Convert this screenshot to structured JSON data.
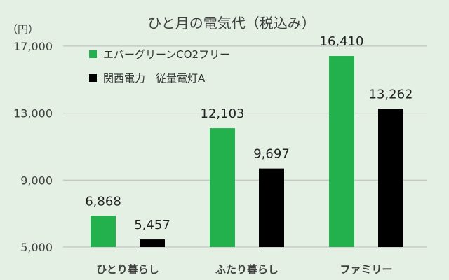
{
  "chart_data": {
    "type": "bar",
    "title": "ひと月の電気代（税込み）",
    "unit_label": "（円）",
    "categories": [
      "ひとり暮らし",
      "ふたり暮らし",
      "ファミリー"
    ],
    "series": [
      {
        "name": "エバーグリーンCO2フリー",
        "color": "#22b14c",
        "values": [
          6868,
          12103,
          16410
        ],
        "labels": [
          "6,868",
          "12,103",
          "16,410"
        ]
      },
      {
        "name": "関西電力　従量電灯A",
        "color": "#000000",
        "values": [
          5457,
          9697,
          13262
        ],
        "labels": [
          "5,457",
          "9,697",
          "13,262"
        ]
      }
    ],
    "ylim": [
      5000,
      18000
    ],
    "yticks": [
      5000,
      9000,
      13000,
      17000
    ],
    "ytick_labels": [
      "5,000",
      "9,000",
      "13,000",
      "17,000"
    ],
    "legend_position": "top-left",
    "grid": true
  }
}
